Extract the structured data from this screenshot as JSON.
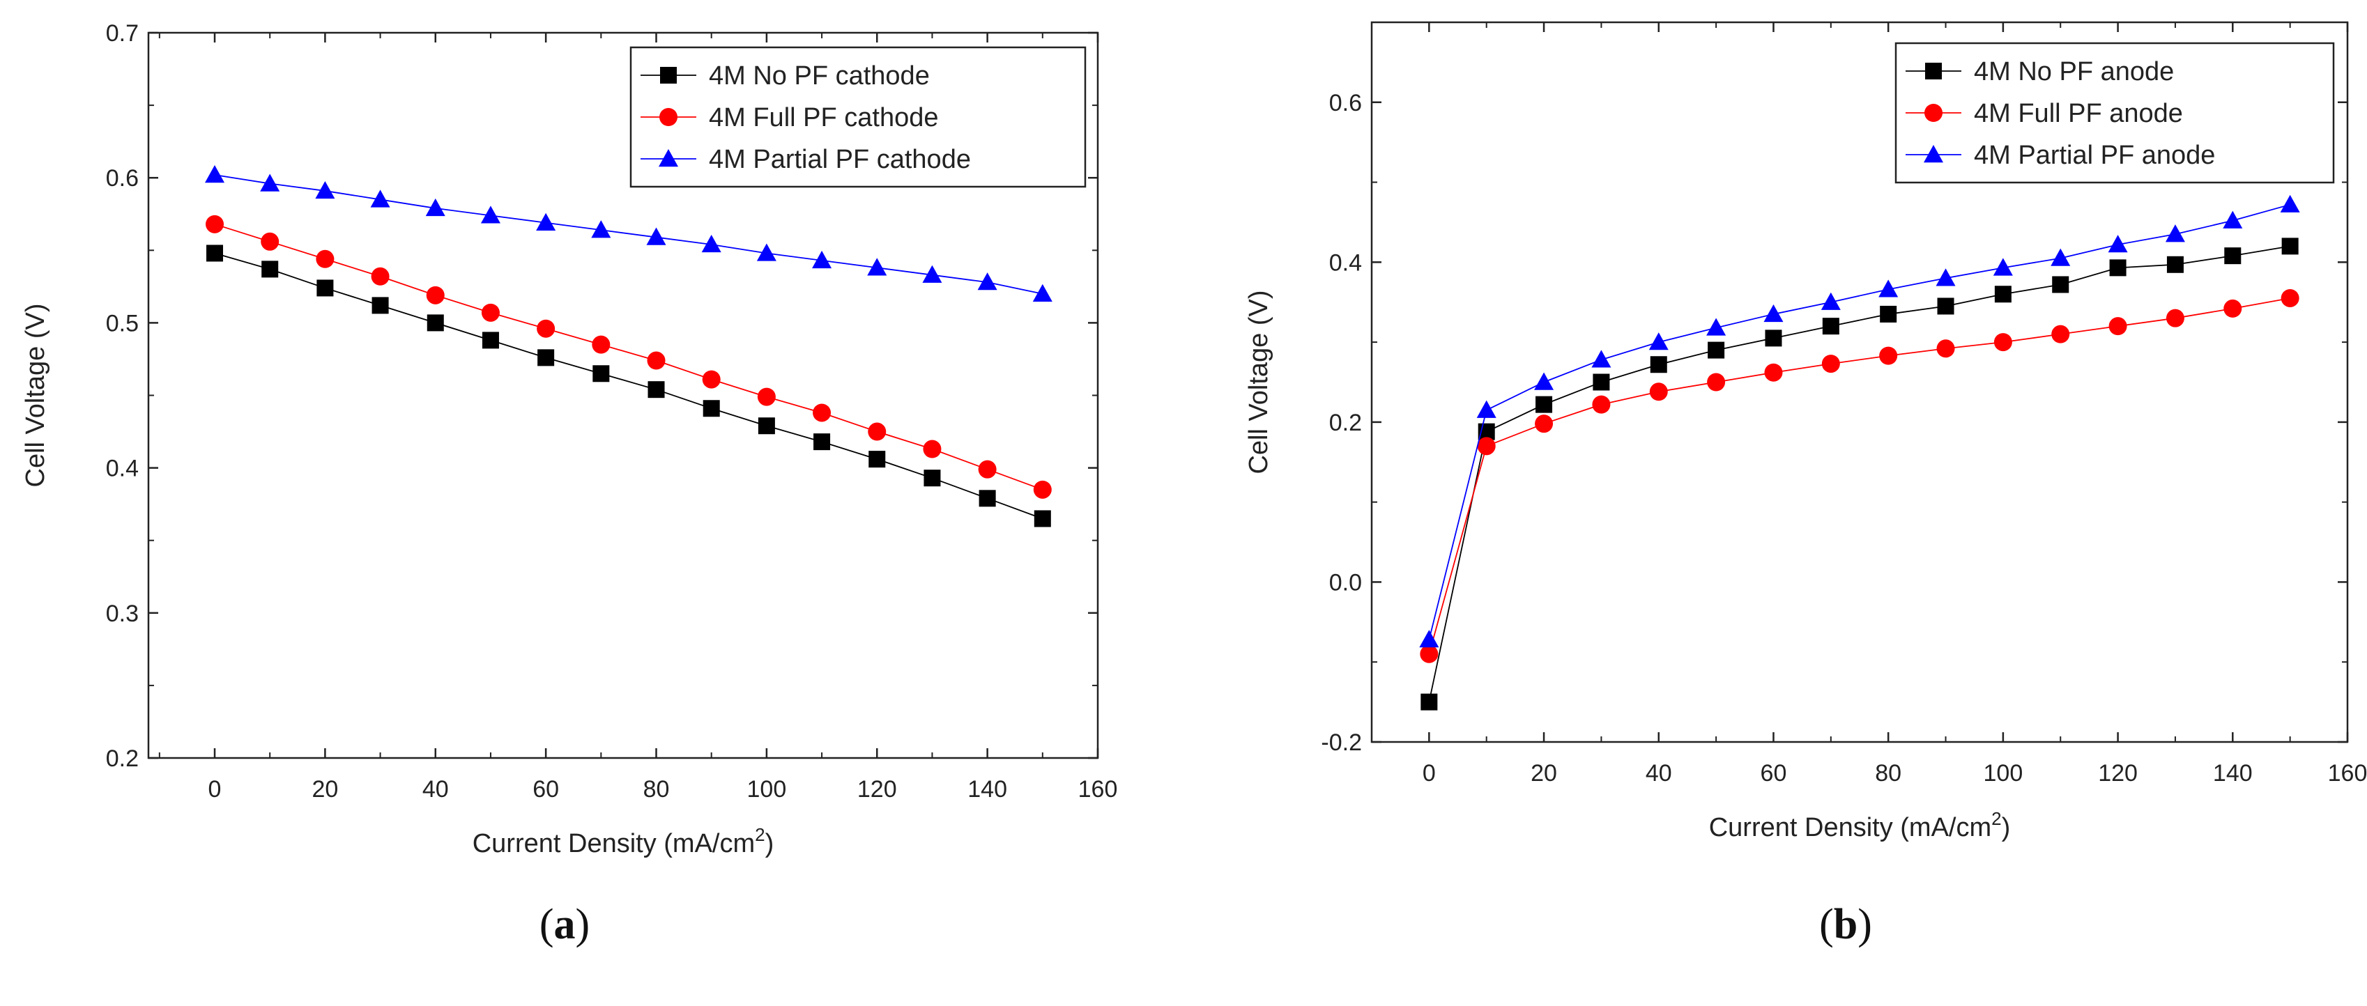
{
  "chart_data": [
    {
      "type": "line",
      "panel_label": "(a)",
      "panel_letter": "a",
      "xlabel": "Current Density (mA/cm",
      "xlabel_sup": "2",
      "xlabel_tail": ")",
      "ylabel": "Cell Voltage (V)",
      "xlim": [
        -12,
        160
      ],
      "ylim": [
        0.2,
        0.7
      ],
      "xticks": [
        0,
        20,
        40,
        60,
        80,
        100,
        120,
        140,
        160
      ],
      "yticks": [
        0.2,
        0.3,
        0.4,
        0.5,
        0.6,
        0.7
      ],
      "ytick_labels": [
        "0.2",
        "0.3",
        "0.4",
        "0.5",
        "0.6",
        "0.7"
      ],
      "grid": false,
      "legend_position": "top-right",
      "x": [
        0,
        10,
        20,
        30,
        40,
        50,
        60,
        70,
        80,
        90,
        100,
        110,
        120,
        130,
        140,
        150
      ],
      "series": [
        {
          "name": "4M No PF cathode",
          "color": "#000000",
          "marker": "square",
          "values": [
            0.548,
            0.537,
            0.524,
            0.512,
            0.5,
            0.488,
            0.476,
            0.465,
            0.454,
            0.441,
            0.429,
            0.418,
            0.406,
            0.393,
            0.379,
            0.365
          ]
        },
        {
          "name": "4M Full PF cathode",
          "color": "#ff0000",
          "marker": "circle",
          "values": [
            0.568,
            0.556,
            0.544,
            0.532,
            0.519,
            0.507,
            0.496,
            0.485,
            0.474,
            0.461,
            0.449,
            0.438,
            0.425,
            0.413,
            0.399,
            0.385
          ]
        },
        {
          "name": "4M Partial PF cathode",
          "color": "#0000ff",
          "marker": "triangle",
          "values": [
            0.602,
            0.596,
            0.591,
            0.585,
            0.579,
            0.574,
            0.569,
            0.564,
            0.559,
            0.554,
            0.548,
            0.543,
            0.538,
            0.533,
            0.528,
            0.52
          ]
        }
      ]
    },
    {
      "type": "line",
      "panel_label": "(b)",
      "panel_letter": "b",
      "xlabel": "Current Density (mA/cm",
      "xlabel_sup": "2",
      "xlabel_tail": ")",
      "ylabel": "Cell Voltage (V)",
      "xlim": [
        -10,
        160
      ],
      "ylim": [
        -0.2,
        0.7
      ],
      "xticks": [
        0,
        20,
        40,
        60,
        80,
        100,
        120,
        140,
        160
      ],
      "yticks": [
        -0.2,
        0.0,
        0.2,
        0.4,
        0.6
      ],
      "ytick_labels": [
        "-0.2",
        "0.0",
        "0.2",
        "0.4",
        "0.6"
      ],
      "grid": false,
      "legend_position": "top-right",
      "x": [
        0,
        10,
        20,
        30,
        40,
        50,
        60,
        70,
        80,
        90,
        100,
        110,
        120,
        130,
        140,
        150
      ],
      "series": [
        {
          "name": "4M No PF anode",
          "color": "#000000",
          "marker": "square",
          "values": [
            -0.15,
            0.188,
            0.222,
            0.25,
            0.272,
            0.29,
            0.305,
            0.32,
            0.335,
            0.345,
            0.36,
            0.372,
            0.393,
            0.397,
            0.408,
            0.42
          ]
        },
        {
          "name": "4M Full PF anode",
          "color": "#ff0000",
          "marker": "circle",
          "values": [
            -0.09,
            0.17,
            0.198,
            0.222,
            0.238,
            0.25,
            0.262,
            0.273,
            0.283,
            0.292,
            0.3,
            0.31,
            0.32,
            0.33,
            0.342,
            0.355
          ]
        },
        {
          "name": "4M Partial PF anode",
          "color": "#0000ff",
          "marker": "triangle",
          "values": [
            -0.072,
            0.215,
            0.25,
            0.278,
            0.3,
            0.318,
            0.335,
            0.35,
            0.366,
            0.38,
            0.393,
            0.405,
            0.422,
            0.435,
            0.452,
            0.472
          ]
        }
      ]
    }
  ]
}
